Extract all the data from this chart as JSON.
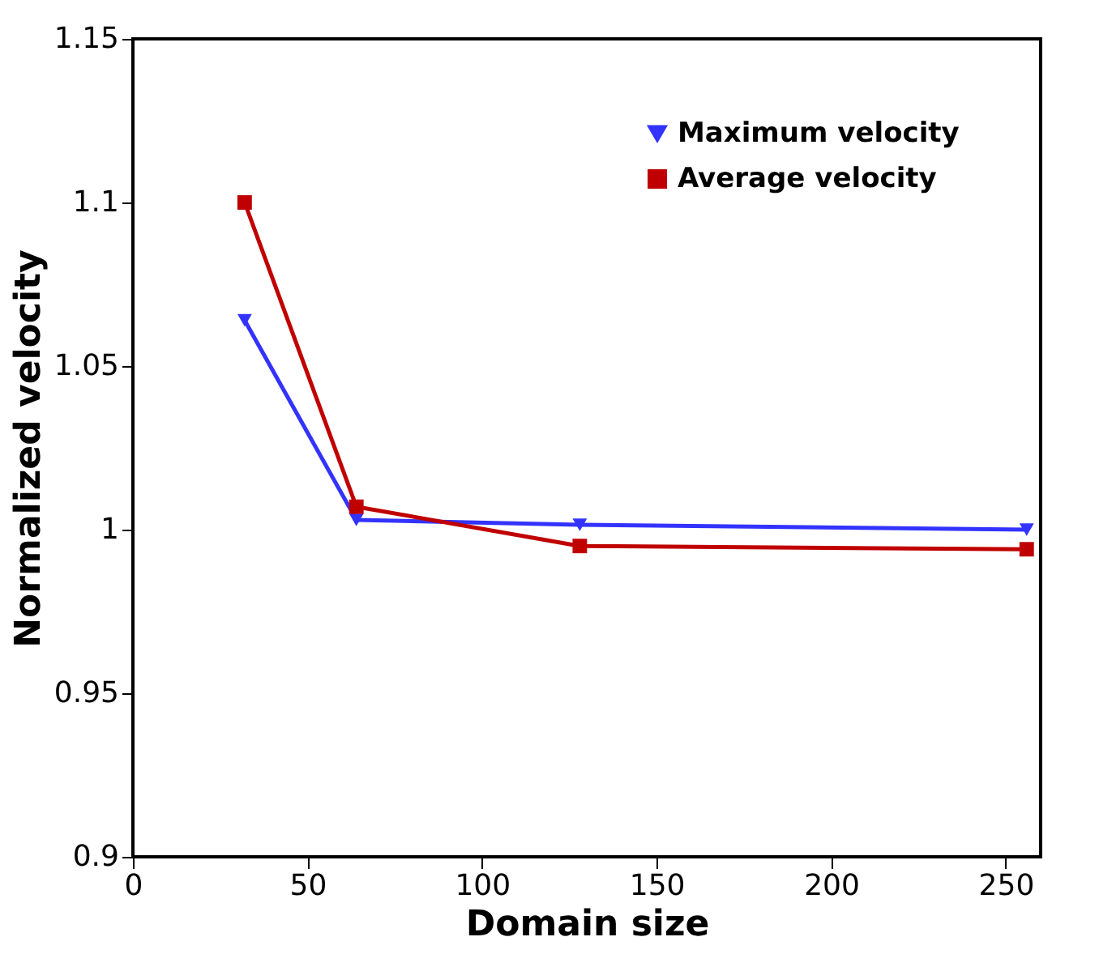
{
  "chart_data": {
    "type": "line",
    "xlabel": "Domain size",
    "ylabel": "Normalized velocity",
    "x": [
      32,
      64,
      128,
      256
    ],
    "series": [
      {
        "name": "Maximum velocity",
        "color": "#3333ff",
        "marker": "triangle",
        "values": [
          1.064,
          1.003,
          1.0015,
          1.0
        ]
      },
      {
        "name": "Average velocity",
        "color": "#c00000",
        "marker": "square",
        "values": [
          1.1,
          1.007,
          0.995,
          0.994
        ]
      }
    ],
    "xlim": [
      0,
      260
    ],
    "xticks": [
      0,
      50,
      100,
      150,
      200,
      250
    ],
    "ylim": [
      0.9,
      1.15
    ],
    "yticks": [
      0.9,
      0.95,
      1,
      1.05,
      1.1,
      1.15
    ],
    "grid": false,
    "legend": "top right",
    "line_style": "solid"
  }
}
